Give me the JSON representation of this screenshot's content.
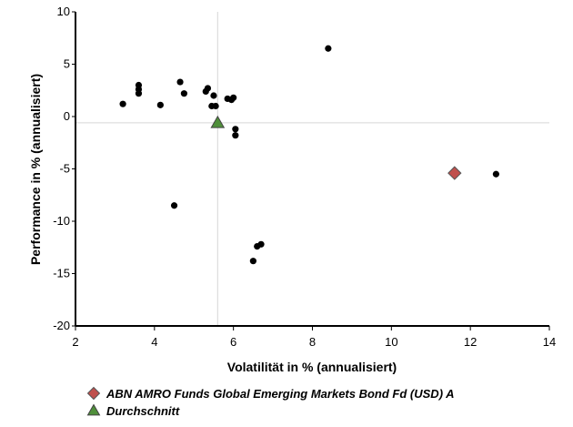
{
  "chart_data": {
    "type": "scatter",
    "title": "",
    "xlabel": "Volatilität in % (annualisiert)",
    "ylabel": "Performance in % (annualisiert)",
    "xlim": [
      2,
      14
    ],
    "ylim": [
      -20,
      10
    ],
    "x_ticks": [
      2,
      4,
      6,
      8,
      10,
      12,
      14
    ],
    "y_ticks": [
      10,
      5,
      0,
      -5,
      -10,
      -15,
      -20
    ],
    "x_tick_labels": [
      "2",
      "4",
      "6",
      "8",
      "10",
      "12",
      "14"
    ],
    "y_tick_labels": [
      "10",
      "5",
      "0",
      "-5",
      "-10",
      "-15",
      "-20"
    ],
    "crosshair": {
      "x": 5.6,
      "y": -0.6
    },
    "grid": false,
    "legend_position": "bottom",
    "series": [
      {
        "marker": "circle",
        "color": "#000000",
        "points": [
          {
            "x": 3.2,
            "y": 1.2
          },
          {
            "x": 3.6,
            "y": 3.0
          },
          {
            "x": 3.6,
            "y": 2.6
          },
          {
            "x": 3.6,
            "y": 2.2
          },
          {
            "x": 4.15,
            "y": 1.1
          },
          {
            "x": 4.5,
            "y": -8.5
          },
          {
            "x": 4.65,
            "y": 3.3
          },
          {
            "x": 4.75,
            "y": 2.2
          },
          {
            "x": 5.3,
            "y": 2.4
          },
          {
            "x": 5.35,
            "y": 2.7
          },
          {
            "x": 5.45,
            "y": 1.0
          },
          {
            "x": 5.5,
            "y": 2.0
          },
          {
            "x": 5.55,
            "y": 1.0
          },
          {
            "x": 5.85,
            "y": 1.7
          },
          {
            "x": 5.95,
            "y": 1.6
          },
          {
            "x": 6.0,
            "y": 1.8
          },
          {
            "x": 6.05,
            "y": -1.2
          },
          {
            "x": 6.05,
            "y": -1.8
          },
          {
            "x": 6.5,
            "y": -13.8
          },
          {
            "x": 6.6,
            "y": -12.4
          },
          {
            "x": 6.7,
            "y": -12.2
          },
          {
            "x": 8.4,
            "y": 6.5
          },
          {
            "x": 12.65,
            "y": -5.5
          }
        ]
      },
      {
        "name": "ABN AMRO Funds Global Emerging Markets Bond Fd (USD) A",
        "marker": "diamond",
        "color": "#c0504d",
        "points": [
          {
            "x": 11.6,
            "y": -5.4
          }
        ]
      },
      {
        "name": "Durchschnitt",
        "marker": "triangle",
        "color": "#4f8f3a",
        "points": [
          {
            "x": 5.6,
            "y": -0.6
          }
        ]
      }
    ]
  }
}
